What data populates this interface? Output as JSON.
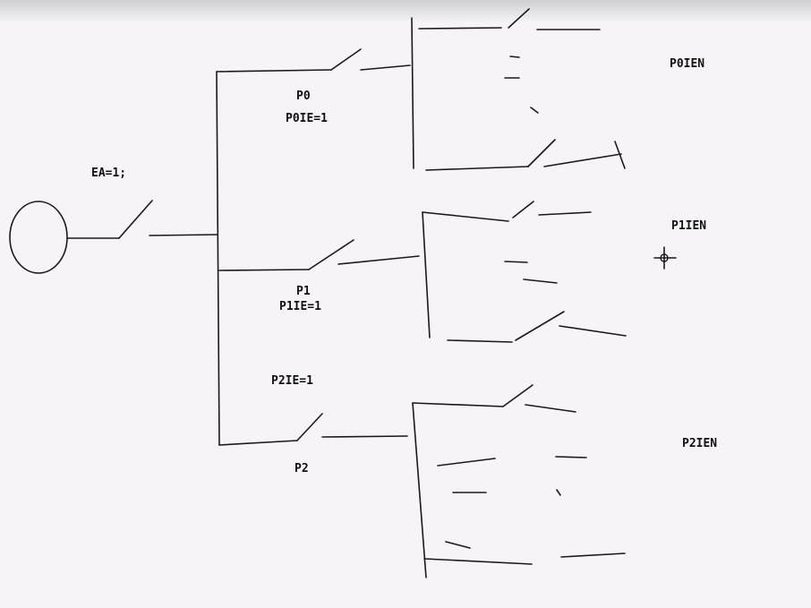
{
  "labels": {
    "ea": "EA=1;",
    "p0": "P0",
    "p0ie": "P0IE=1",
    "p1": "P1",
    "p1ie": "P1IE=1",
    "p2ie": "P2IE=1",
    "p2": "P2",
    "p0ien": "P0IEN",
    "p1ien": "P1IEN",
    "p2ien": "P2IEN"
  }
}
